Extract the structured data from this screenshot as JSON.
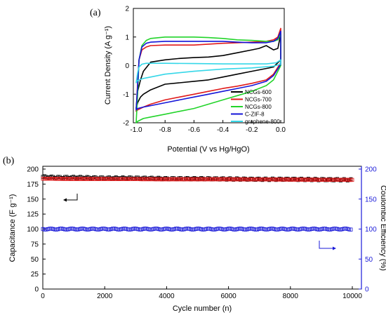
{
  "chart_data": [
    {
      "panel_label": "(a)",
      "type": "line",
      "xlabel": "Potential (V vs Hg/HgO)",
      "ylabel": "Current Density (A g⁻¹)",
      "xlim": [
        -1.0,
        0.0
      ],
      "ylim": [
        -2,
        2
      ],
      "xticks": [
        "-1.0",
        "-0.8",
        "-0.6",
        "-0.4",
        "-0.2",
        "0.0"
      ],
      "yticks": [
        "-2",
        "-1",
        "0",
        "1",
        "2"
      ],
      "legend_position": "bottom-right",
      "series": [
        {
          "name": "NCGs-600",
          "color": "#000000",
          "x": [
            -1.0,
            -0.99,
            -0.97,
            -0.95,
            -0.9,
            -0.8,
            -0.7,
            -0.6,
            -0.5,
            -0.4,
            -0.3,
            -0.2,
            -0.15,
            -0.1,
            -0.05,
            -0.02,
            0.0,
            0.0,
            -0.05,
            -0.1,
            -0.2,
            -0.3,
            -0.4,
            -0.5,
            -0.6,
            -0.7,
            -0.8,
            -0.9,
            -0.95,
            -0.97,
            -0.99,
            -1.0
          ],
          "y": [
            -1.5,
            -0.9,
            -0.5,
            -0.2,
            0.12,
            0.2,
            0.25,
            0.28,
            0.3,
            0.35,
            0.45,
            0.55,
            0.6,
            0.7,
            0.55,
            0.6,
            1.1,
            0.2,
            -0.05,
            -0.1,
            -0.2,
            -0.3,
            -0.4,
            -0.5,
            -0.55,
            -0.6,
            -0.65,
            -0.85,
            -1.0,
            -1.1,
            -1.3,
            -1.5
          ]
        },
        {
          "name": "NCGs-700",
          "color": "#e01a1a",
          "x": [
            -1.0,
            -0.99,
            -0.98,
            -0.96,
            -0.93,
            -0.9,
            -0.8,
            -0.7,
            -0.6,
            -0.5,
            -0.4,
            -0.3,
            -0.2,
            -0.1,
            -0.05,
            -0.02,
            0.0,
            0.0,
            -0.05,
            -0.1,
            -0.2,
            -0.3,
            -0.4,
            -0.5,
            -0.6,
            -0.7,
            -0.8,
            -0.9,
            -0.95,
            -0.99,
            -1.0
          ],
          "y": [
            -1.6,
            -0.6,
            0.2,
            0.55,
            0.65,
            0.7,
            0.72,
            0.72,
            0.72,
            0.75,
            0.78,
            0.8,
            0.82,
            0.85,
            0.9,
            1.0,
            1.3,
            0.1,
            -0.3,
            -0.5,
            -0.62,
            -0.72,
            -0.8,
            -0.9,
            -1.0,
            -1.1,
            -1.2,
            -1.35,
            -1.45,
            -1.55,
            -1.6
          ]
        },
        {
          "name": "NCGs-800",
          "color": "#22d42a",
          "x": [
            -1.0,
            -0.99,
            -0.98,
            -0.96,
            -0.93,
            -0.9,
            -0.8,
            -0.7,
            -0.6,
            -0.5,
            -0.4,
            -0.3,
            -0.2,
            -0.1,
            -0.05,
            -0.02,
            0.0,
            0.0,
            -0.05,
            -0.1,
            -0.2,
            -0.3,
            -0.4,
            -0.5,
            -0.6,
            -0.7,
            -0.8,
            -0.9,
            -0.95,
            -0.99,
            -1.0
          ],
          "y": [
            -2.0,
            -1.0,
            0.2,
            0.7,
            0.88,
            0.95,
            1.0,
            1.0,
            1.0,
            0.98,
            0.95,
            0.9,
            0.88,
            0.85,
            0.85,
            0.9,
            1.1,
            0.0,
            -0.5,
            -0.7,
            -0.9,
            -1.05,
            -1.2,
            -1.35,
            -1.5,
            -1.6,
            -1.7,
            -1.8,
            -1.85,
            -1.95,
            -2.0
          ]
        },
        {
          "name": "C-ZIF-8",
          "color": "#1414d8",
          "x": [
            -1.0,
            -0.99,
            -0.98,
            -0.96,
            -0.93,
            -0.9,
            -0.8,
            -0.7,
            -0.6,
            -0.5,
            -0.4,
            -0.3,
            -0.2,
            -0.1,
            -0.05,
            -0.02,
            0.0,
            0.0,
            -0.05,
            -0.1,
            -0.2,
            -0.3,
            -0.4,
            -0.5,
            -0.6,
            -0.7,
            -0.8,
            -0.9,
            -0.95,
            -0.99,
            -1.0
          ],
          "y": [
            -1.55,
            -0.7,
            0.2,
            0.65,
            0.78,
            0.82,
            0.85,
            0.85,
            0.85,
            0.85,
            0.85,
            0.82,
            0.8,
            0.8,
            0.85,
            0.95,
            1.2,
            0.05,
            -0.35,
            -0.55,
            -0.7,
            -0.8,
            -0.9,
            -1.0,
            -1.1,
            -1.2,
            -1.3,
            -1.4,
            -1.45,
            -1.5,
            -1.55
          ]
        },
        {
          "name": "graphene-800",
          "color": "#35d7e8",
          "x": [
            -1.0,
            -0.99,
            -0.98,
            -0.96,
            -0.93,
            -0.9,
            -0.8,
            -0.6,
            -0.4,
            -0.2,
            -0.1,
            -0.03,
            0.0,
            0.0,
            -0.05,
            -0.2,
            -0.4,
            -0.6,
            -0.8,
            -0.9,
            -0.95,
            -0.99,
            -1.0
          ],
          "y": [
            -0.6,
            -0.25,
            -0.05,
            0.05,
            0.08,
            0.08,
            0.08,
            0.07,
            0.06,
            0.06,
            0.06,
            0.1,
            0.2,
            0.05,
            -0.02,
            -0.08,
            -0.12,
            -0.2,
            -0.3,
            -0.4,
            -0.45,
            -0.52,
            -0.6
          ]
        }
      ]
    },
    {
      "panel_label": "(b)",
      "type": "scatter",
      "xlabel": "Cycle number (n)",
      "ylabel": "Capacitance (F g⁻¹)",
      "ylabel_right": "Coulombic Efficiency (%)",
      "xlim": [
        0,
        10000
      ],
      "ylim": [
        0,
        200
      ],
      "ylim_right": [
        0,
        200
      ],
      "xticks": [
        "0",
        "2000",
        "4000",
        "6000",
        "8000",
        "10000"
      ],
      "yticks": [
        "0",
        "25",
        "50",
        "75",
        "100",
        "125",
        "150",
        "175",
        "200"
      ],
      "yticks_right": [
        "0",
        "50",
        "100",
        "150",
        "200"
      ],
      "series": [
        {
          "name": "Capacitance (black markers)",
          "color": "#000000",
          "axis": "left",
          "x": [
            0,
            500,
            1000,
            2000,
            3000,
            4000,
            5000,
            6000,
            7000,
            8000,
            9000,
            10000
          ],
          "y": [
            187,
            186,
            186,
            185,
            185,
            184,
            184,
            183.5,
            183,
            183,
            182.5,
            182
          ]
        },
        {
          "name": "Capacitance (red markers)",
          "color": "#e01a1a",
          "axis": "left",
          "x": [
            0,
            1000,
            2000,
            4000,
            6000,
            8000,
            10000
          ],
          "y": [
            184,
            183.5,
            183.5,
            183,
            183,
            182.5,
            182
          ]
        },
        {
          "name": "Coulombic Efficiency",
          "color": "#1a1ad8",
          "axis": "right",
          "x": [
            0,
            1000,
            2000,
            3000,
            4000,
            5000,
            6000,
            7000,
            8000,
            9000,
            10000
          ],
          "y": [
            100,
            100,
            100,
            100,
            100,
            100,
            100,
            100,
            100,
            100,
            100
          ]
        }
      ]
    }
  ]
}
